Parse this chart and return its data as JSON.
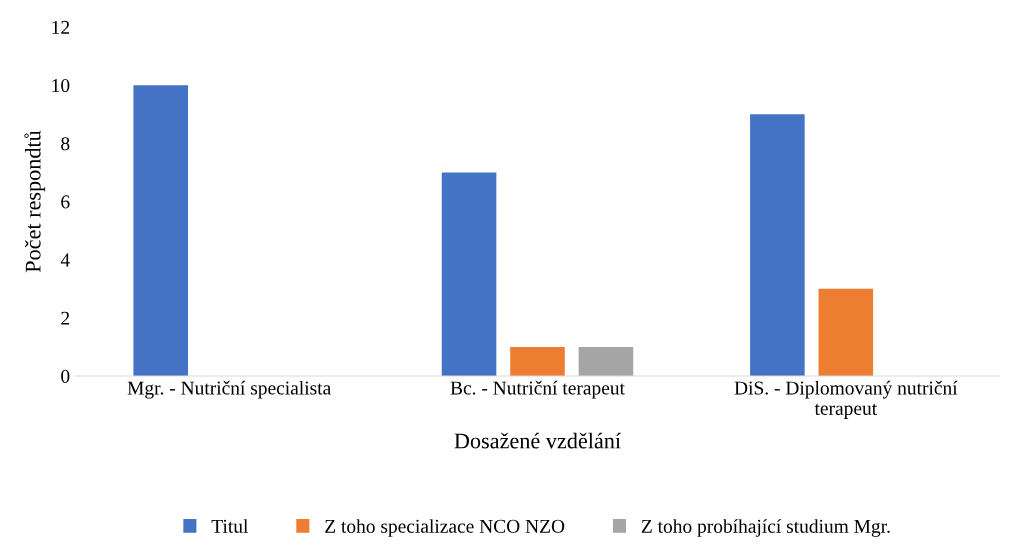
{
  "chart_data": {
    "type": "bar",
    "xlabel": "Dosažené vzdělání",
    "ylabel": "Počet respondtů",
    "categories": [
      "Mgr. - Nutriční specialista",
      "Bc. - Nutriční terapeut",
      "DiS. - Diplomovaný nutriční\nterapeut"
    ],
    "series": [
      {
        "name": "Titul",
        "color": "#4472c4",
        "values": [
          10,
          7,
          9
        ]
      },
      {
        "name": "Z toho specializace NCO NZO",
        "color": "#ed7d31",
        "values": [
          0,
          1,
          3
        ]
      },
      {
        "name": "Z toho probíhající studium Mgr.",
        "color": "#a5a5a5",
        "values": [
          0,
          1,
          0
        ]
      }
    ],
    "ylim": [
      0,
      12
    ],
    "yticks": [
      0,
      2,
      4,
      6,
      8,
      10,
      12
    ],
    "grid": false,
    "legend": "bottom"
  }
}
